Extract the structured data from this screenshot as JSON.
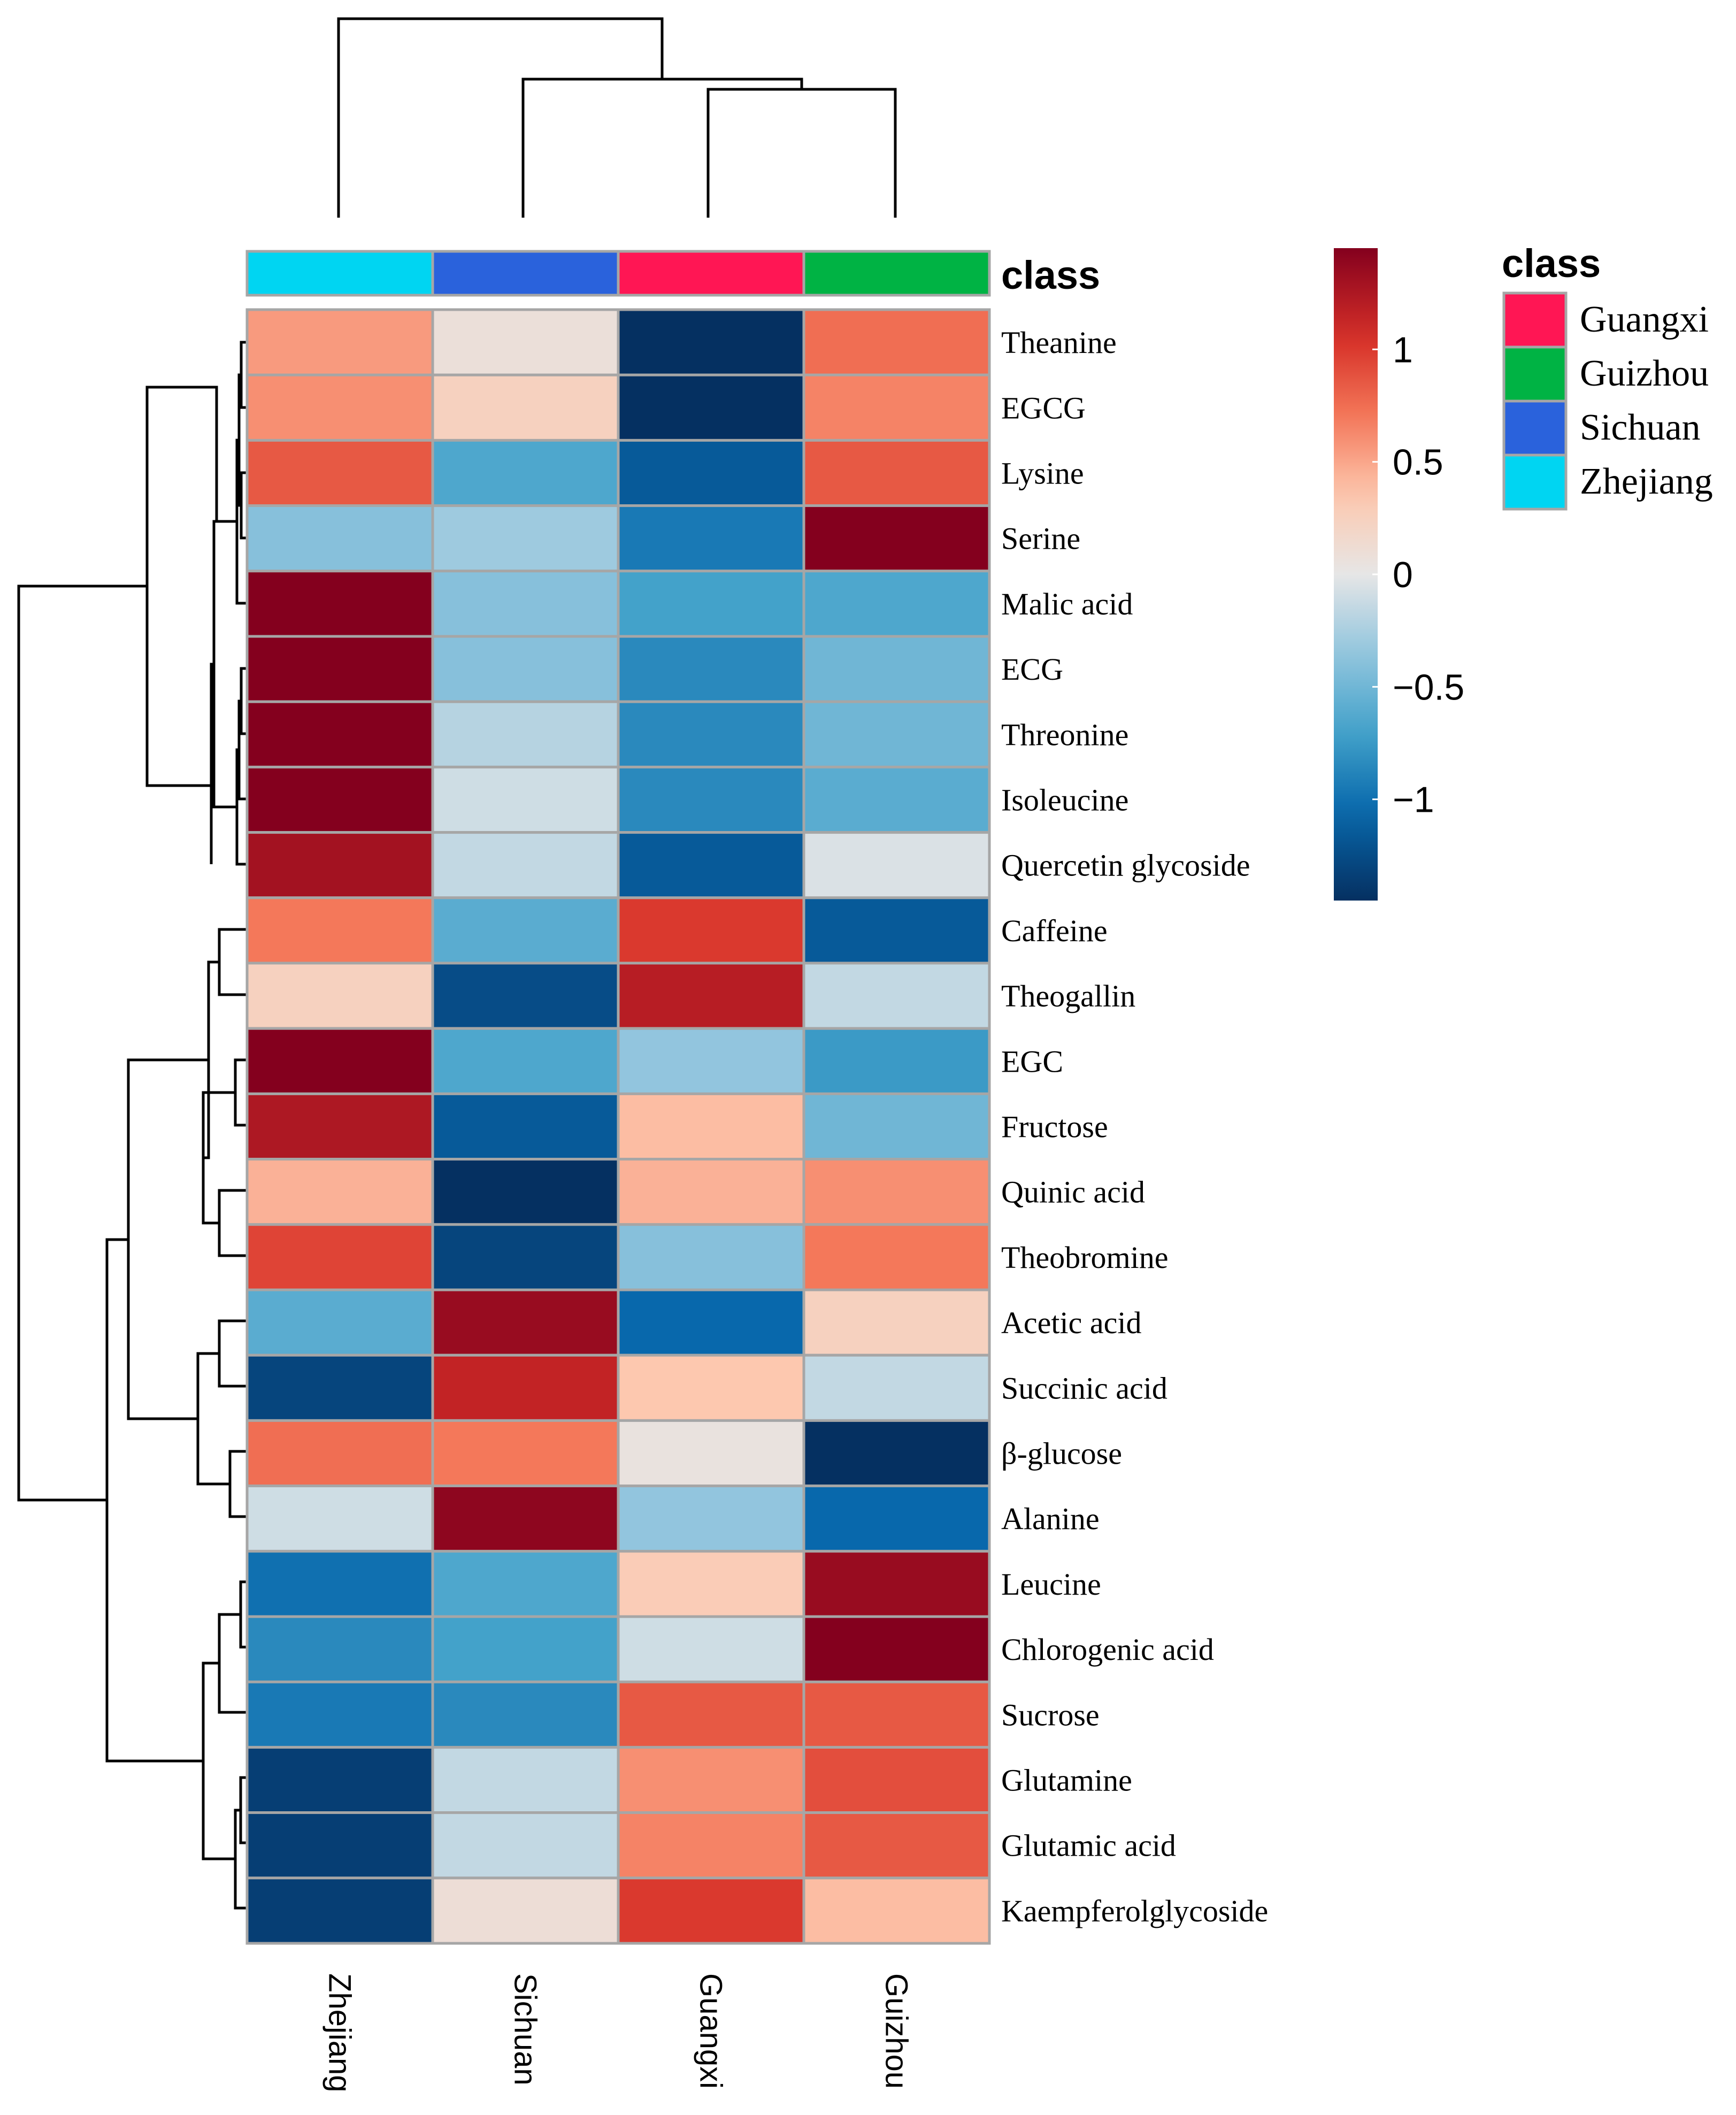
{
  "chart_data": {
    "type": "heatmap",
    "rows": [
      "Theanine",
      "EGCG",
      "Lysine",
      "Serine",
      "Malic acid",
      "ECG",
      "Threonine",
      "Isoleucine",
      "Quercetin glycoside",
      "Caffeine",
      "Theogallin",
      "EGC",
      "Fructose",
      "Quinic acid",
      "Theobromine",
      "Acetic acid",
      "Succinic acid",
      "β-glucose",
      "Alanine",
      "Leucine",
      "Chlorogenic acid",
      "Sucrose",
      "Glutamine",
      "Glutamic acid",
      "Kaempferolglycoside"
    ],
    "columns": [
      "Zhejiang",
      "Sichuan",
      "Guangxi",
      "Guizhou"
    ],
    "column_class": [
      "Zhejiang",
      "Sichuan",
      "Guangxi",
      "Guizhou"
    ],
    "values": [
      [
        0.55,
        0.08,
        -1.45,
        0.75
      ],
      [
        0.6,
        0.25,
        -1.45,
        0.65
      ],
      [
        0.85,
        -0.65,
        -1.15,
        0.85
      ],
      [
        -0.4,
        -0.3,
        -0.95,
        1.45
      ],
      [
        1.45,
        -0.4,
        -0.7,
        -0.65
      ],
      [
        1.45,
        -0.4,
        -0.85,
        -0.5
      ],
      [
        1.45,
        -0.2,
        -0.85,
        -0.5
      ],
      [
        1.45,
        -0.1,
        -0.85,
        -0.6
      ],
      [
        1.3,
        -0.15,
        -1.15,
        -0.05
      ],
      [
        0.7,
        -0.6,
        1.0,
        -1.15
      ],
      [
        0.25,
        -1.25,
        1.2,
        -0.15
      ],
      [
        1.45,
        -0.65,
        -0.35,
        -0.75
      ],
      [
        1.25,
        -1.15,
        0.4,
        -0.5
      ],
      [
        0.45,
        -1.45,
        0.45,
        0.6
      ],
      [
        0.95,
        -1.3,
        -0.4,
        0.7
      ],
      [
        -0.6,
        1.35,
        -1.05,
        0.25
      ],
      [
        -1.3,
        1.15,
        0.35,
        -0.15
      ],
      [
        0.75,
        0.7,
        0.05,
        -1.45
      ],
      [
        -0.1,
        1.4,
        -0.35,
        -1.05
      ],
      [
        -1.0,
        -0.65,
        0.3,
        1.35
      ],
      [
        -0.85,
        -0.7,
        -0.1,
        1.45
      ],
      [
        -0.95,
        -0.85,
        0.85,
        0.85
      ],
      [
        -1.35,
        -0.15,
        0.6,
        0.9
      ],
      [
        -1.35,
        -0.15,
        0.65,
        0.85
      ],
      [
        -1.35,
        0.1,
        1.0,
        0.4
      ]
    ],
    "value_range": [
      -1.45,
      1.45
    ],
    "colorbar": {
      "ticks": [
        1,
        0.5,
        0,
        -0.5,
        -1
      ],
      "tick_labels": [
        "1",
        "0.5",
        "0",
        "−0.5",
        "−1"
      ]
    },
    "legend": {
      "title": "class",
      "entries": [
        {
          "label": "Guangxi",
          "color": "#FF1654"
        },
        {
          "label": "Guizhou",
          "color": "#00B344"
        },
        {
          "label": "Sichuan",
          "color": "#2A62DC"
        },
        {
          "label": "Zhejiang",
          "color": "#00D5F2"
        }
      ],
      "placement": "right"
    },
    "class_annotation_label": "class",
    "column_dendrogram": [
      [
        2,
        3
      ],
      [
        1,
        [
          2,
          3
        ]
      ],
      [
        0,
        [
          1,
          [
            2,
            3
          ]
        ]
      ]
    ],
    "row_dendrogram": "hierarchical clustering of rows (shown left)"
  }
}
